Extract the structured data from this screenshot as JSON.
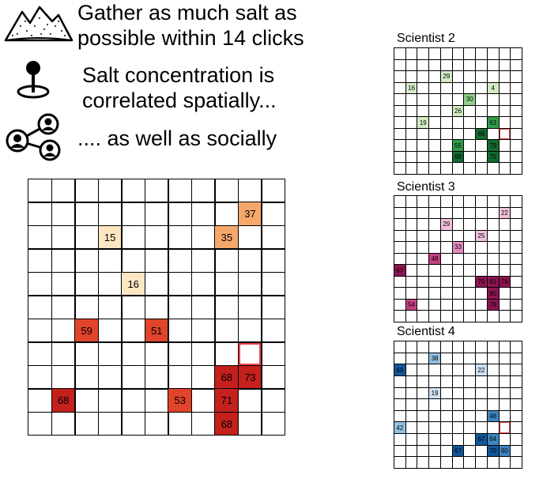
{
  "instructions": [
    {
      "line1": "Gather as much salt as",
      "line2": "possible within 14 clicks",
      "icon": "mountain-icon"
    },
    {
      "line1": "Salt concentration is",
      "line2": "correlated spatially...",
      "icon": "map-pin-icon"
    },
    {
      "line1": ".... as well as socially",
      "line2": "",
      "icon": "social-network-icon"
    }
  ],
  "colors": {
    "grid_line": "#000000",
    "selection_outline": "#ee4444",
    "main_scale": [
      "#fde7c3",
      "#f6a86b",
      "#e0442a",
      "#c4201c"
    ],
    "scientist_2_scale": [
      "#d3ecc6",
      "#8fd08a",
      "#2f9e48",
      "#136b30"
    ],
    "scientist_3_scale": [
      "#f2c2dd",
      "#e58bbf",
      "#c64080",
      "#8f1452"
    ],
    "scientist_4_scale": [
      "#cfe1f2",
      "#93c1e3",
      "#3e86c4",
      "#10589a"
    ]
  },
  "main_grid": {
    "rows": 11,
    "cols": 11,
    "selected": [
      7,
      9
    ],
    "cells": [
      {
        "r": 1,
        "c": 9,
        "v": 37
      },
      {
        "r": 2,
        "c": 3,
        "v": 15
      },
      {
        "r": 2,
        "c": 8,
        "v": 35
      },
      {
        "r": 4,
        "c": 4,
        "v": 16
      },
      {
        "r": 6,
        "c": 2,
        "v": 59
      },
      {
        "r": 6,
        "c": 5,
        "v": 51
      },
      {
        "r": 8,
        "c": 8,
        "v": 68
      },
      {
        "r": 8,
        "c": 9,
        "v": 73
      },
      {
        "r": 9,
        "c": 1,
        "v": 68
      },
      {
        "r": 9,
        "c": 6,
        "v": 53
      },
      {
        "r": 9,
        "c": 8,
        "v": 71
      },
      {
        "r": 10,
        "c": 8,
        "v": 68
      }
    ]
  },
  "scientists": [
    {
      "name": "Scientist 2",
      "rows": 11,
      "cols": 11,
      "selected": [
        7,
        9
      ],
      "scale": "scientist_2_scale",
      "cells": [
        {
          "r": 2,
          "c": 4,
          "v": 29
        },
        {
          "r": 3,
          "c": 1,
          "v": 16
        },
        {
          "r": 3,
          "c": 8,
          "v": 4
        },
        {
          "r": 4,
          "c": 6,
          "v": 30
        },
        {
          "r": 5,
          "c": 5,
          "v": 26
        },
        {
          "r": 6,
          "c": 2,
          "v": 19
        },
        {
          "r": 6,
          "c": 8,
          "v": 63
        },
        {
          "r": 7,
          "c": 7,
          "v": 66
        },
        {
          "r": 8,
          "c": 5,
          "v": 55
        },
        {
          "r": 8,
          "c": 8,
          "v": 79
        },
        {
          "r": 9,
          "c": 5,
          "v": 68
        },
        {
          "r": 9,
          "c": 8,
          "v": 75
        }
      ]
    },
    {
      "name": "Scientist 3",
      "rows": 11,
      "cols": 11,
      "selected": null,
      "scale": "scientist_3_scale",
      "cells": [
        {
          "r": 1,
          "c": 9,
          "v": 22
        },
        {
          "r": 2,
          "c": 4,
          "v": 29
        },
        {
          "r": 3,
          "c": 7,
          "v": 25
        },
        {
          "r": 4,
          "c": 5,
          "v": 33
        },
        {
          "r": 5,
          "c": 3,
          "v": 48
        },
        {
          "r": 6,
          "c": 0,
          "v": 67
        },
        {
          "r": 7,
          "c": 7,
          "v": 79
        },
        {
          "r": 7,
          "c": 8,
          "v": 81
        },
        {
          "r": 7,
          "c": 9,
          "v": 76
        },
        {
          "r": 8,
          "c": 8,
          "v": 80
        },
        {
          "r": 9,
          "c": 1,
          "v": 54
        },
        {
          "r": 9,
          "c": 8,
          "v": 78
        }
      ]
    },
    {
      "name": "Scientist 4",
      "rows": 11,
      "cols": 11,
      "selected": [
        7,
        9
      ],
      "scale": "scientist_4_scale",
      "cells": [
        {
          "r": 1,
          "c": 3,
          "v": 38
        },
        {
          "r": 2,
          "c": 0,
          "v": 69
        },
        {
          "r": 2,
          "c": 7,
          "v": 22
        },
        {
          "r": 4,
          "c": 3,
          "v": 19
        },
        {
          "r": 6,
          "c": 8,
          "v": 48
        },
        {
          "r": 7,
          "c": 0,
          "v": 42
        },
        {
          "r": 8,
          "c": 7,
          "v": 67
        },
        {
          "r": 8,
          "c": 8,
          "v": 64
        },
        {
          "r": 9,
          "c": 5,
          "v": 67
        },
        {
          "r": 9,
          "c": 8,
          "v": 70
        },
        {
          "r": 9,
          "c": 9,
          "v": 60
        }
      ]
    }
  ]
}
